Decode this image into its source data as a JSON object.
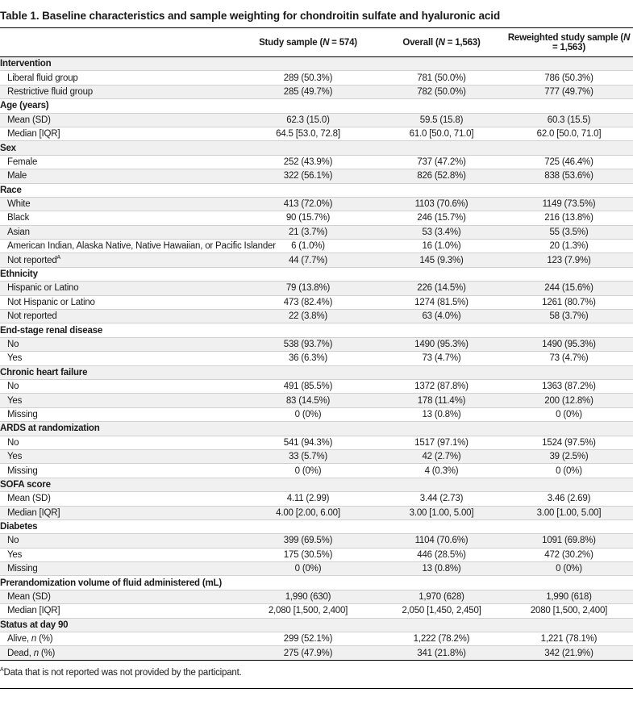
{
  "title": "Table 1. Baseline characteristics and sample weighting for chondroitin sulfate and hyaluronic acid",
  "columns": [
    {
      "label": "Study sample (",
      "n_italic": "N",
      "n_rest": " = 574)"
    },
    {
      "label": "Overall (",
      "n_italic": "N",
      "n_rest": " = 1,563)"
    },
    {
      "label": "Reweighted study sample (",
      "n_italic": "N",
      "n_rest": " = 1,563)"
    }
  ],
  "sections": [
    {
      "title": "Intervention",
      "rows": [
        {
          "label": "Liberal fluid group",
          "v": [
            "289 (50.3%)",
            "781 (50.0%)",
            "786 (50.3%)"
          ]
        },
        {
          "label": "Restrictive fluid group",
          "v": [
            "285 (49.7%)",
            "782 (50.0%)",
            "777 (49.7%)"
          ]
        }
      ]
    },
    {
      "title": "Age (years)",
      "rows": [
        {
          "label": "Mean (SD)",
          "v": [
            "62.3 (15.0)",
            "59.5 (15.8)",
            "60.3 (15.5)"
          ]
        },
        {
          "label": "Median [IQR]",
          "v": [
            "64.5 [53.0, 72.8]",
            "61.0 [50.0, 71.0]",
            "62.0 [50.0, 71.0]"
          ]
        }
      ]
    },
    {
      "title": "Sex",
      "rows": [
        {
          "label": "Female",
          "v": [
            "252 (43.9%)",
            "737 (47.2%)",
            "725 (46.4%)"
          ]
        },
        {
          "label": "Male",
          "v": [
            "322 (56.1%)",
            "826 (52.8%)",
            "838 (53.6%)"
          ]
        }
      ]
    },
    {
      "title": "Race",
      "rows": [
        {
          "label": "White",
          "v": [
            "413 (72.0%)",
            "1103 (70.6%)",
            "1149 (73.5%)"
          ]
        },
        {
          "label": "Black",
          "v": [
            "90 (15.7%)",
            "246 (15.7%)",
            "216 (13.8%)"
          ]
        },
        {
          "label": "Asian",
          "v": [
            "21 (3.7%)",
            "53 (3.4%)",
            "55 (3.5%)"
          ]
        },
        {
          "label": "American Indian, Alaska Native, Native Hawaiian, or Pacific Islander",
          "v": [
            "6 (1.0%)",
            "16 (1.0%)",
            "20 (1.3%)"
          ]
        },
        {
          "label": "Not reported",
          "sup": "A",
          "v": [
            "44 (7.7%)",
            "145 (9.3%)",
            "123 (7.9%)"
          ]
        }
      ]
    },
    {
      "title": "Ethnicity",
      "rows": [
        {
          "label": "Hispanic or Latino",
          "v": [
            "79 (13.8%)",
            "226 (14.5%)",
            "244 (15.6%)"
          ]
        },
        {
          "label": "Not Hispanic or Latino",
          "v": [
            "473 (82.4%)",
            "1274 (81.5%)",
            "1261 (80.7%)"
          ]
        },
        {
          "label": "Not reported",
          "v": [
            "22 (3.8%)",
            "63 (4.0%)",
            "58 (3.7%)"
          ]
        }
      ]
    },
    {
      "title": "End-stage renal disease",
      "rows": [
        {
          "label": "No",
          "v": [
            "538 (93.7%)",
            "1490 (95.3%)",
            "1490 (95.3%)"
          ]
        },
        {
          "label": "Yes",
          "v": [
            "36 (6.3%)",
            "73 (4.7%)",
            "73 (4.7%)"
          ]
        }
      ]
    },
    {
      "title": "Chronic heart failure",
      "rows": [
        {
          "label": "No",
          "v": [
            "491 (85.5%)",
            "1372 (87.8%)",
            "1363 (87.2%)"
          ]
        },
        {
          "label": "Yes",
          "v": [
            "83 (14.5%)",
            "178 (11.4%)",
            "200 (12.8%)"
          ]
        },
        {
          "label": "Missing",
          "v": [
            "0 (0%)",
            "13 (0.8%)",
            "0 (0%)"
          ]
        }
      ]
    },
    {
      "title": "ARDS at randomization",
      "rows": [
        {
          "label": "No",
          "v": [
            "541 (94.3%)",
            "1517 (97.1%)",
            "1524 (97.5%)"
          ]
        },
        {
          "label": "Yes",
          "v": [
            "33 (5.7%)",
            "42 (2.7%)",
            "39 (2.5%)"
          ]
        },
        {
          "label": "Missing",
          "v": [
            "0 (0%)",
            "4 (0.3%)",
            "0 (0%)"
          ]
        }
      ]
    },
    {
      "title": "SOFA score",
      "rows": [
        {
          "label": "Mean (SD)",
          "v": [
            "4.11 (2.99)",
            "3.44 (2.73)",
            "3.46 (2.69)"
          ]
        },
        {
          "label": "Median [IQR]",
          "v": [
            "4.00 [2.00, 6.00]",
            "3.00 [1.00, 5.00]",
            "3.00 [1.00, 5.00]"
          ]
        }
      ]
    },
    {
      "title": "Diabetes",
      "rows": [
        {
          "label": "No",
          "v": [
            "399 (69.5%)",
            "1104 (70.6%)",
            "1091 (69.8%)"
          ]
        },
        {
          "label": "Yes",
          "v": [
            "175 (30.5%)",
            "446 (28.5%)",
            "472 (30.2%)"
          ]
        },
        {
          "label": "Missing",
          "v": [
            "0 (0%)",
            "13 (0.8%)",
            "0 (0%)"
          ]
        }
      ]
    },
    {
      "title": "Prerandomization volume of fluid administered (mL)",
      "rows": [
        {
          "label": "Mean (SD)",
          "v": [
            "1,990 (630)",
            "1,970 (628)",
            "1,990 (618)"
          ]
        },
        {
          "label": "Median [IQR]",
          "v": [
            "2,080 [1,500, 2,400]",
            "2,050 [1,450, 2,450]",
            "2080 [1,500, 2,400]"
          ]
        }
      ]
    },
    {
      "title": "Status at day 90",
      "rows": [
        {
          "label": "Alive, ",
          "label_italic": "n",
          "label_rest": " (%)",
          "v": [
            "299 (52.1%)",
            "1,222 (78.2%)",
            "1,221 (78.1%)"
          ]
        },
        {
          "label": "Dead, ",
          "label_italic": "n",
          "label_rest": " (%)",
          "v": [
            "275 (47.9%)",
            "341 (21.8%)",
            "342 (21.9%)"
          ]
        }
      ]
    }
  ],
  "footnote": {
    "marker": "A",
    "text": "Data that is not reported was not provided by the participant."
  }
}
